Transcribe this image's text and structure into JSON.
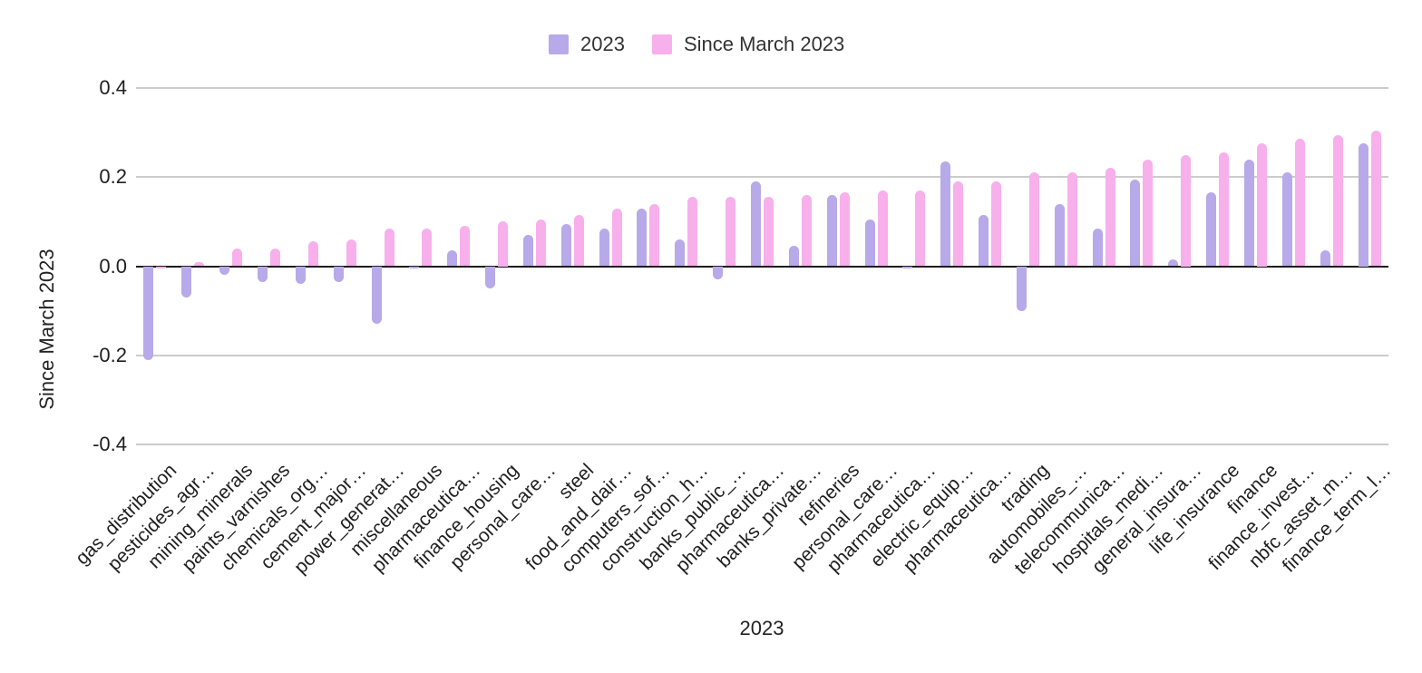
{
  "chart_data": {
    "type": "bar",
    "title": "",
    "xlabel": "2023",
    "ylabel": "Since March 2023",
    "ylim": [
      -0.4,
      0.4
    ],
    "y_ticks": [
      "0.4",
      "0.2",
      "0.0",
      "-0.2",
      "-0.4"
    ],
    "y_tick_values": [
      0.4,
      0.2,
      0.0,
      -0.2,
      -0.4
    ],
    "grid": true,
    "legend_position": "top",
    "categories": [
      "gas_distribution",
      "pesticides_agr…",
      "mining_minerals",
      "paints_varnishes",
      "chemicals_org…",
      "cement_major…",
      "power_generat…",
      "miscellaneous",
      "pharmaceutica…",
      "finance_housing",
      "personal_care…",
      "steel",
      "food_and_dair…",
      "computers_sof…",
      "construction_h…",
      "banks_public_…",
      "pharmaceutica…",
      "banks_private…",
      "refineries",
      "personal_care…",
      "pharmaceutica…",
      "electric_equip…",
      "pharmaceutica…",
      "trading",
      "automobiles_…",
      "telecommunica…",
      "hospitals_medi…",
      "general_insura…",
      "life_insurance",
      "finance",
      "finance_invest…",
      "nbfc_asset_m…",
      "finance_term_l…"
    ],
    "series": [
      {
        "name": "2023",
        "color": "#b8a9e9",
        "values": [
          -0.21,
          -0.07,
          -0.02,
          -0.035,
          -0.04,
          -0.035,
          -0.13,
          -0.005,
          0.035,
          -0.05,
          0.07,
          0.095,
          0.085,
          0.13,
          0.06,
          -0.03,
          0.19,
          0.045,
          0.16,
          0.105,
          -0.005,
          0.235,
          0.115,
          -0.1,
          0.14,
          0.085,
          0.195,
          0.015,
          0.165,
          0.24,
          0.21,
          0.035,
          0.275
        ]
      },
      {
        "name": "Since March 2023",
        "color": "#f7b0ec",
        "values": [
          -0.005,
          0.01,
          0.04,
          0.04,
          0.055,
          0.06,
          0.085,
          0.085,
          0.09,
          0.1,
          0.105,
          0.115,
          0.13,
          0.14,
          0.155,
          0.155,
          0.155,
          0.16,
          0.165,
          0.17,
          0.17,
          0.19,
          0.19,
          0.21,
          0.21,
          0.22,
          0.24,
          0.25,
          0.255,
          0.275,
          0.285,
          0.295,
          0.305
        ]
      }
    ],
    "colors": {
      "gridline": "#cccccc",
      "zero_line": "#1c1c1c",
      "text": "#1f1f1f"
    }
  }
}
